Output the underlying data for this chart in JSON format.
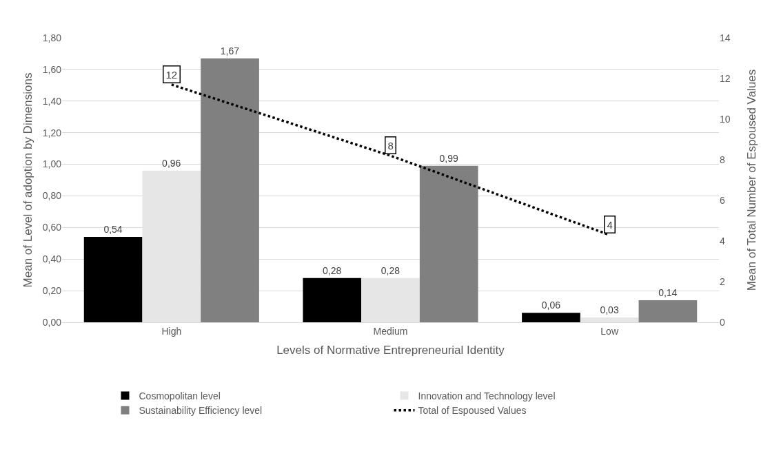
{
  "chart_data": {
    "type": "bar",
    "xlabel": "Levels of Normative Entrepreneurial Identity",
    "ylabel": "Mean of Level of adoption by Dimensions",
    "y2label": "Mean of Total Number of Espoused Values",
    "categories": [
      "High",
      "Medium",
      "Low"
    ],
    "series": [
      {
        "name": "Cosmopolitan level",
        "color": "#000000",
        "values": [
          0.54,
          0.28,
          0.06
        ],
        "value_labels": [
          "0,54",
          "0,28",
          "0,06"
        ]
      },
      {
        "name": "Innovation and Technology level",
        "color": "#e6e6e6",
        "values": [
          0.96,
          0.28,
          0.03
        ],
        "value_labels": [
          "0,96",
          "0,28",
          "0,03"
        ]
      },
      {
        "name": "Sustainability Efficiency level",
        "color": "#808080",
        "values": [
          1.67,
          0.99,
          0.14
        ],
        "value_labels": [
          "1,67",
          "0,99",
          "0,14"
        ]
      },
      {
        "name": "Total of Espoused Values",
        "type": "line",
        "axis": "y2",
        "color": "#000000",
        "line_style": "dotted",
        "marker": "none",
        "values": [
          11.7,
          8.2,
          4.3
        ],
        "value_labels": [
          "12",
          "8",
          "4"
        ]
      }
    ],
    "ylim": [
      0,
      1.8
    ],
    "yticks": [
      {
        "value": 0,
        "label": "0,00"
      },
      {
        "value": 0.2,
        "label": "0,20"
      },
      {
        "value": 0.4,
        "label": "0,40"
      },
      {
        "value": 0.6,
        "label": "0,60"
      },
      {
        "value": 0.8,
        "label": "0,80"
      },
      {
        "value": 1,
        "label": "1,00"
      },
      {
        "value": 1.2,
        "label": "1,20"
      },
      {
        "value": 1.4,
        "label": "1,40"
      },
      {
        "value": 1.6,
        "label": "1,60"
      },
      {
        "value": 1.8,
        "label": "1,80"
      }
    ],
    "y2lim": [
      0,
      14
    ],
    "y2ticks": [
      0,
      2,
      4,
      6,
      8,
      10,
      12,
      14
    ],
    "grid": "y",
    "legend": "bottom"
  }
}
